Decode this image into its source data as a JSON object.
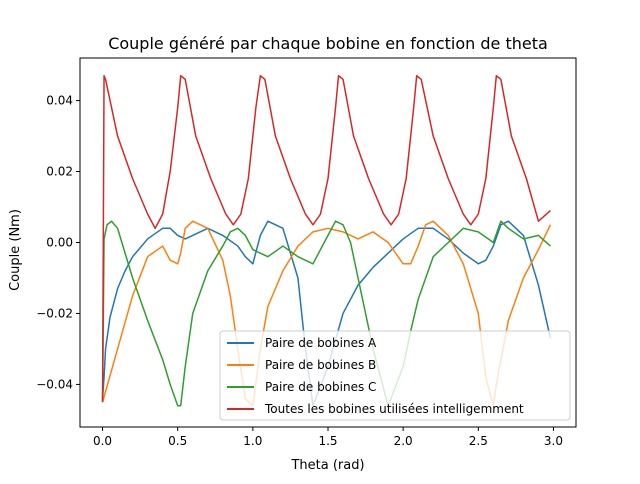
{
  "chart_data": {
    "type": "line",
    "title": "Couple généré par chaque bobine en fonction de theta",
    "xlabel": "Theta (rad)",
    "ylabel": "Couple (Nm)",
    "xlim": [
      -0.15,
      3.15
    ],
    "ylim": [
      -0.052,
      0.052
    ],
    "xticks": [
      0.0,
      0.5,
      1.0,
      1.5,
      2.0,
      2.5,
      3.0
    ],
    "xtick_labels": [
      "0.0",
      "0.5",
      "1.0",
      "1.5",
      "2.0",
      "2.5",
      "3.0"
    ],
    "yticks": [
      -0.04,
      -0.02,
      0.0,
      0.02,
      0.04
    ],
    "ytick_labels": [
      "−0.04",
      "−0.02",
      "0.00",
      "0.02",
      "0.04"
    ],
    "grid": false,
    "legend_position": "lower-right",
    "period": 0.5236,
    "series": [
      {
        "name": "Paire de bobines A",
        "color": "#1f77b4",
        "x": [
          0.0,
          0.01,
          0.02,
          0.05,
          0.1,
          0.15,
          0.2,
          0.3,
          0.4,
          0.45,
          0.5,
          0.55,
          0.6,
          0.7,
          0.8,
          0.9,
          0.95,
          1.0,
          1.05,
          1.1,
          1.2,
          1.3,
          1.35,
          1.4,
          1.5,
          1.6,
          1.7,
          1.8,
          1.9,
          2.0,
          2.1,
          2.2,
          2.3,
          2.4,
          2.5,
          2.55,
          2.6,
          2.65,
          2.7,
          2.8,
          2.9,
          2.98
        ],
        "y": [
          -0.044,
          -0.038,
          -0.03,
          -0.021,
          -0.013,
          -0.008,
          -0.004,
          0.001,
          0.004,
          0.004,
          0.002,
          0.001,
          0.002,
          0.004,
          0.002,
          -0.001,
          -0.004,
          -0.006,
          0.002,
          0.006,
          0.004,
          -0.01,
          -0.03,
          -0.046,
          -0.035,
          -0.02,
          -0.012,
          -0.007,
          -0.003,
          0.001,
          0.004,
          0.004,
          0.001,
          -0.003,
          -0.006,
          -0.005,
          -0.001,
          0.005,
          0.006,
          0.002,
          -0.012,
          -0.027
        ]
      },
      {
        "name": "Paire de bobines B",
        "color": "#ff7f0e",
        "x": [
          0.0,
          0.1,
          0.2,
          0.3,
          0.4,
          0.45,
          0.5,
          0.52,
          0.55,
          0.6,
          0.7,
          0.8,
          0.85,
          0.9,
          0.95,
          1.0,
          1.05,
          1.1,
          1.2,
          1.3,
          1.4,
          1.5,
          1.6,
          1.7,
          1.8,
          1.9,
          2.0,
          2.05,
          2.1,
          2.15,
          2.2,
          2.3,
          2.4,
          2.5,
          2.55,
          2.6,
          2.62,
          2.7,
          2.8,
          2.9,
          2.98
        ],
        "y": [
          -0.045,
          -0.03,
          -0.015,
          -0.004,
          -0.001,
          -0.005,
          -0.006,
          -0.003,
          0.004,
          0.006,
          0.004,
          -0.005,
          -0.015,
          -0.03,
          -0.044,
          -0.046,
          -0.03,
          -0.018,
          -0.008,
          -0.001,
          0.003,
          0.004,
          0.003,
          0.001,
          0.003,
          0.0,
          -0.006,
          -0.006,
          -0.001,
          0.005,
          0.006,
          0.002,
          -0.006,
          -0.02,
          -0.038,
          -0.046,
          -0.04,
          -0.022,
          -0.01,
          -0.002,
          0.005
        ]
      },
      {
        "name": "Paire de bobines C",
        "color": "#2ca02c",
        "x": [
          0.0,
          0.01,
          0.03,
          0.06,
          0.1,
          0.15,
          0.2,
          0.3,
          0.4,
          0.45,
          0.5,
          0.52,
          0.55,
          0.6,
          0.7,
          0.8,
          0.85,
          0.9,
          0.95,
          1.0,
          1.1,
          1.2,
          1.3,
          1.4,
          1.5,
          1.55,
          1.6,
          1.65,
          1.7,
          1.8,
          1.9,
          2.0,
          2.05,
          2.1,
          2.15,
          2.2,
          2.3,
          2.4,
          2.5,
          2.6,
          2.65,
          2.7,
          2.8,
          2.9,
          2.98
        ],
        "y": [
          -0.045,
          0.001,
          0.005,
          0.006,
          0.004,
          -0.003,
          -0.01,
          -0.022,
          -0.033,
          -0.04,
          -0.046,
          -0.046,
          -0.035,
          -0.02,
          -0.008,
          -0.001,
          0.003,
          0.004,
          0.002,
          -0.002,
          -0.004,
          -0.001,
          -0.004,
          -0.006,
          0.002,
          0.006,
          0.005,
          0.0,
          -0.01,
          -0.03,
          -0.046,
          -0.035,
          -0.025,
          -0.016,
          -0.01,
          -0.004,
          0.0,
          0.004,
          0.003,
          0.0,
          0.006,
          0.004,
          0.001,
          0.002,
          -0.001
        ]
      },
      {
        "name": "Toutes les bobines utilisées intelligemment",
        "color": "#d62728",
        "x": [
          0.0,
          0.01,
          0.02,
          0.1,
          0.2,
          0.3,
          0.35,
          0.4,
          0.45,
          0.5,
          0.52,
          0.55,
          0.62,
          0.72,
          0.82,
          0.87,
          0.92,
          0.97,
          1.02,
          1.05,
          1.08,
          1.15,
          1.25,
          1.35,
          1.4,
          1.45,
          1.5,
          1.55,
          1.57,
          1.6,
          1.67,
          1.77,
          1.87,
          1.92,
          1.97,
          2.02,
          2.07,
          2.09,
          2.12,
          2.2,
          2.3,
          2.4,
          2.45,
          2.5,
          2.55,
          2.6,
          2.62,
          2.65,
          2.72,
          2.82,
          2.9,
          2.98
        ],
        "y": [
          -0.045,
          0.047,
          0.046,
          0.03,
          0.018,
          0.008,
          0.004,
          0.008,
          0.02,
          0.038,
          0.047,
          0.046,
          0.03,
          0.018,
          0.008,
          0.005,
          0.008,
          0.018,
          0.038,
          0.047,
          0.046,
          0.03,
          0.018,
          0.008,
          0.005,
          0.008,
          0.018,
          0.038,
          0.047,
          0.046,
          0.03,
          0.018,
          0.008,
          0.005,
          0.008,
          0.018,
          0.038,
          0.047,
          0.046,
          0.03,
          0.018,
          0.008,
          0.005,
          0.008,
          0.018,
          0.038,
          0.047,
          0.046,
          0.03,
          0.018,
          0.006,
          0.009
        ]
      }
    ]
  }
}
